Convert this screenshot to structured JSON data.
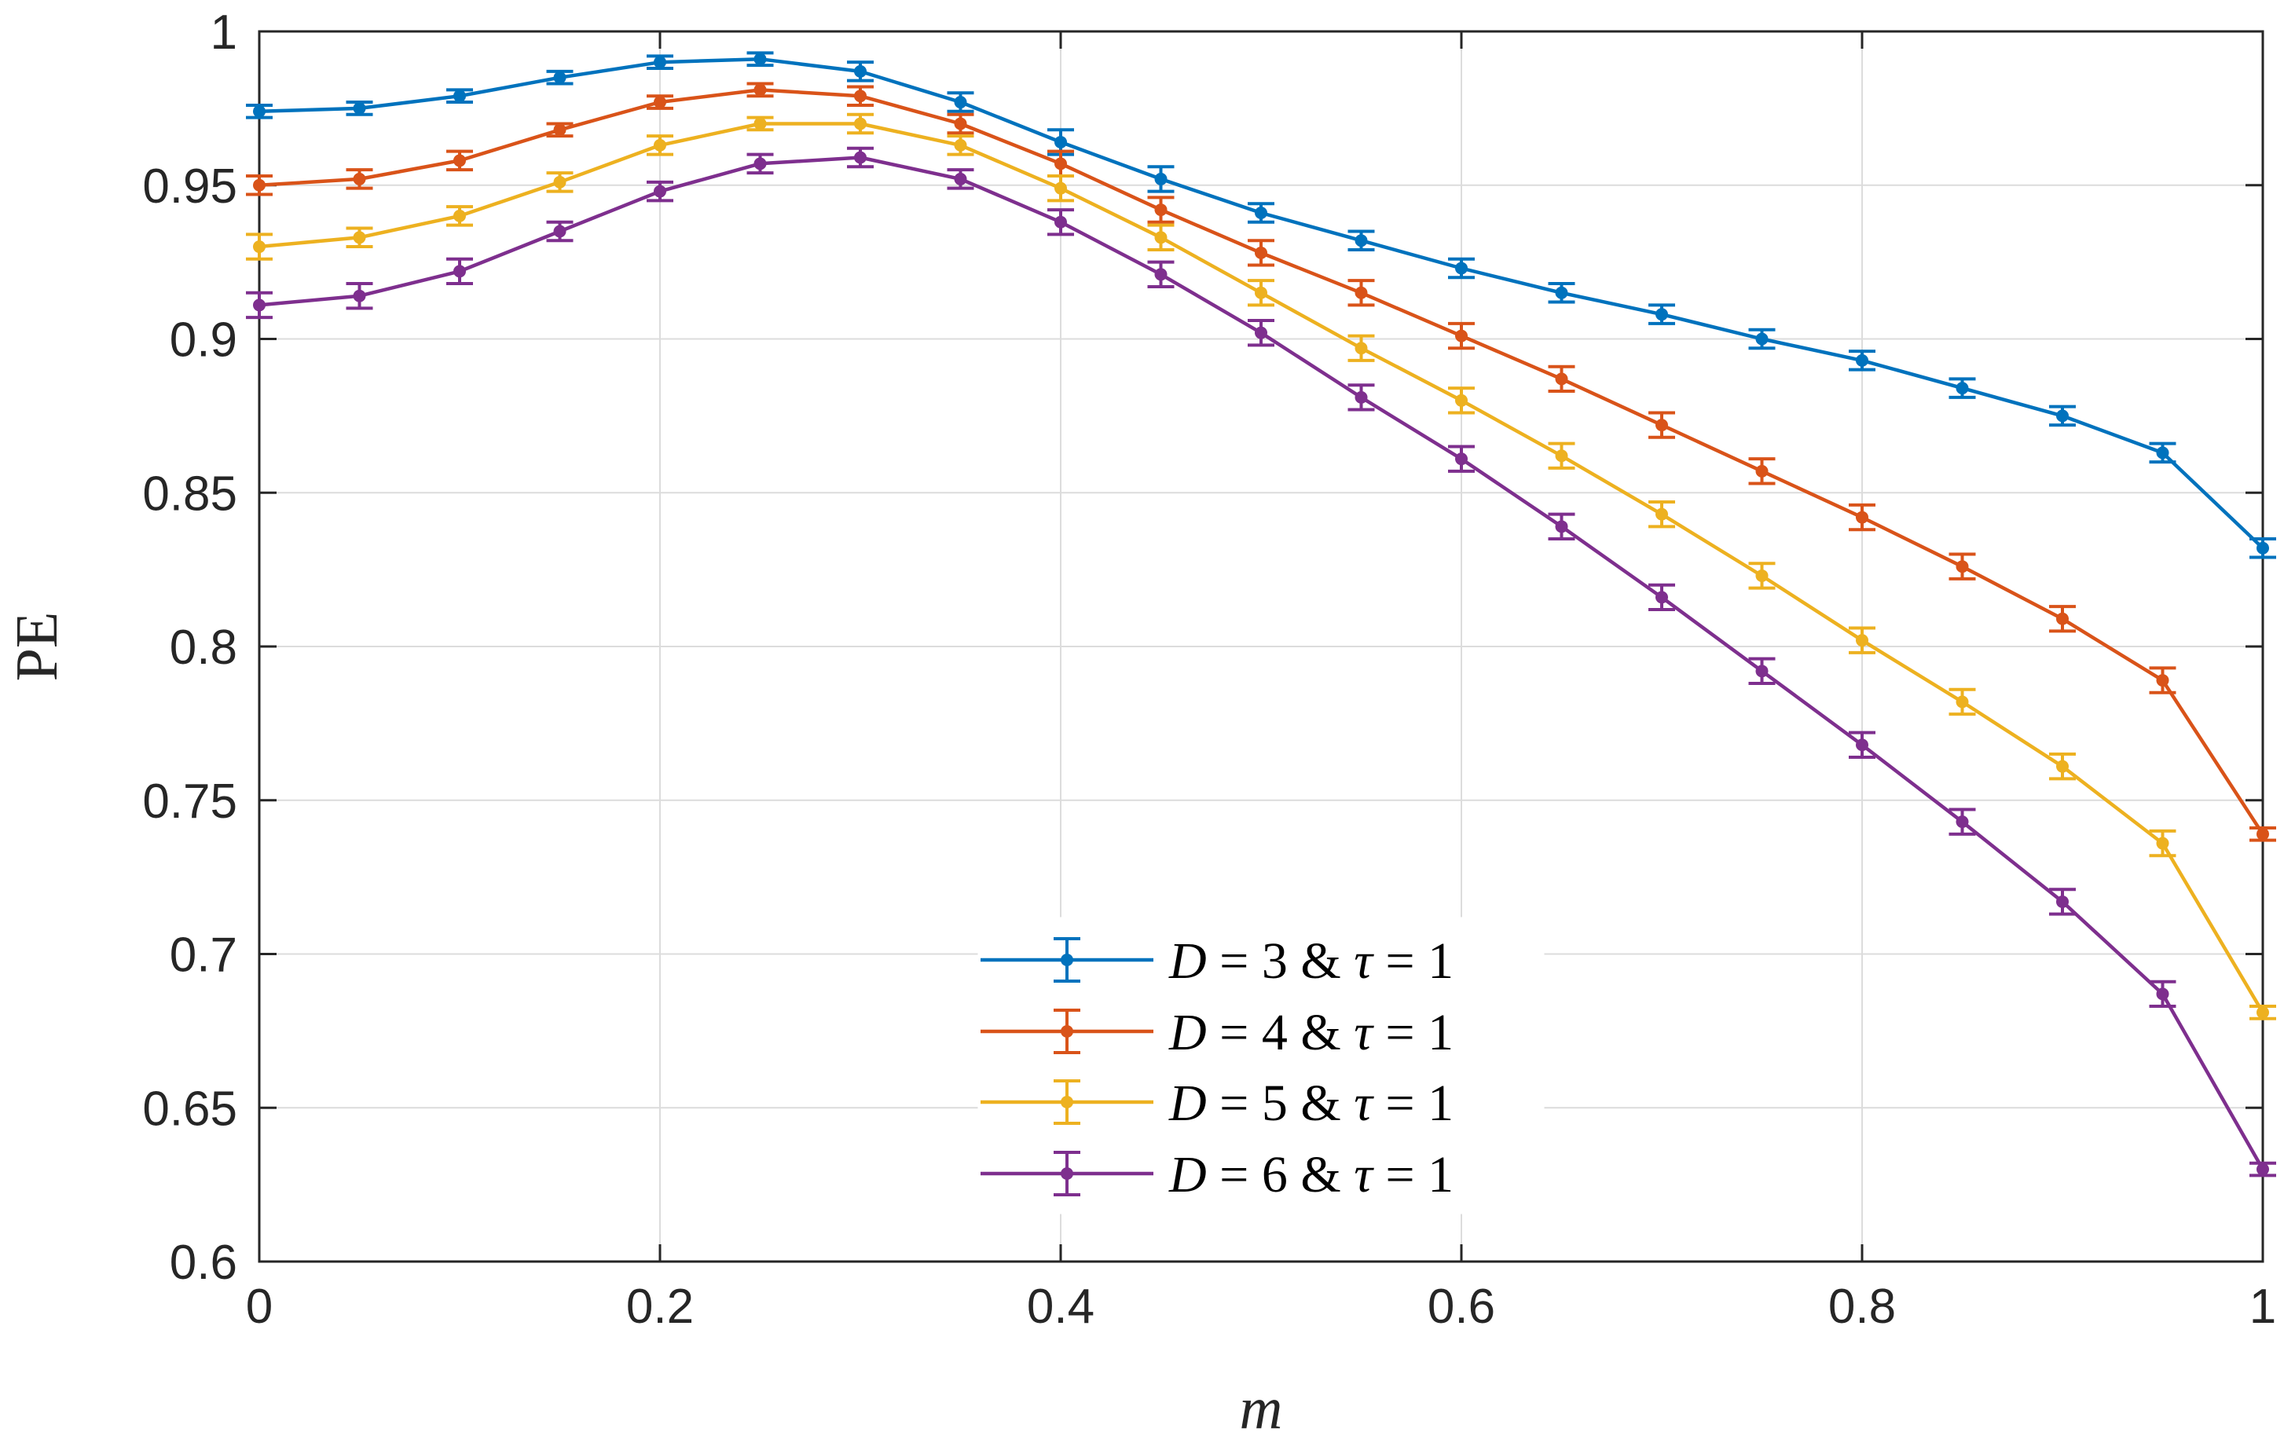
{
  "chart_data": {
    "type": "line",
    "title": "",
    "xlabel": "m",
    "ylabel": "PE",
    "xlim": [
      0,
      1
    ],
    "ylim": [
      0.6,
      1
    ],
    "grid": true,
    "legend_position": "bottom-center",
    "x": [
      0,
      0.05,
      0.1,
      0.15,
      0.2,
      0.25,
      0.3,
      0.35,
      0.4,
      0.45,
      0.5,
      0.55,
      0.6,
      0.65,
      0.7,
      0.75,
      0.8,
      0.85,
      0.9,
      0.95,
      1
    ],
    "x_ticks": [
      {
        "value": 0,
        "label": "0"
      },
      {
        "value": 0.2,
        "label": "0.2"
      },
      {
        "value": 0.4,
        "label": "0.4"
      },
      {
        "value": 0.6,
        "label": "0.6"
      },
      {
        "value": 0.8,
        "label": "0.8"
      },
      {
        "value": 1,
        "label": "1"
      }
    ],
    "y_ticks": [
      {
        "value": 0.6,
        "label": "0.6"
      },
      {
        "value": 0.65,
        "label": "0.65"
      },
      {
        "value": 0.7,
        "label": "0.7"
      },
      {
        "value": 0.75,
        "label": "0.75"
      },
      {
        "value": 0.8,
        "label": "0.8"
      },
      {
        "value": 0.85,
        "label": "0.85"
      },
      {
        "value": 0.9,
        "label": "0.9"
      },
      {
        "value": 0.95,
        "label": "0.95"
      },
      {
        "value": 1,
        "label": "1"
      }
    ],
    "series": [
      {
        "name": "D = 3 & τ = 1",
        "legend": {
          "D": "3",
          "tau": "1"
        },
        "color": "#0072BD",
        "values": [
          0.974,
          0.975,
          0.979,
          0.985,
          0.99,
          0.991,
          0.987,
          0.977,
          0.964,
          0.952,
          0.941,
          0.932,
          0.923,
          0.915,
          0.908,
          0.9,
          0.893,
          0.884,
          0.875,
          0.863,
          0.832
        ],
        "errors": [
          0.002,
          0.002,
          0.002,
          0.002,
          0.002,
          0.002,
          0.003,
          0.003,
          0.004,
          0.004,
          0.003,
          0.003,
          0.003,
          0.003,
          0.003,
          0.003,
          0.003,
          0.003,
          0.003,
          0.003,
          0.003
        ]
      },
      {
        "name": "D = 4 & τ = 1",
        "legend": {
          "D": "4",
          "tau": "1"
        },
        "color": "#D95319",
        "values": [
          0.95,
          0.952,
          0.958,
          0.968,
          0.977,
          0.981,
          0.979,
          0.97,
          0.957,
          0.942,
          0.928,
          0.915,
          0.901,
          0.887,
          0.872,
          0.857,
          0.842,
          0.826,
          0.809,
          0.789,
          0.739
        ],
        "errors": [
          0.003,
          0.003,
          0.003,
          0.002,
          0.002,
          0.002,
          0.003,
          0.003,
          0.004,
          0.004,
          0.004,
          0.004,
          0.004,
          0.004,
          0.004,
          0.004,
          0.004,
          0.004,
          0.004,
          0.004,
          0.002
        ]
      },
      {
        "name": "D = 5 & τ = 1",
        "legend": {
          "D": "5",
          "tau": "1"
        },
        "color": "#EDB120",
        "values": [
          0.93,
          0.933,
          0.94,
          0.951,
          0.963,
          0.97,
          0.97,
          0.963,
          0.949,
          0.933,
          0.915,
          0.897,
          0.88,
          0.862,
          0.843,
          0.823,
          0.802,
          0.782,
          0.761,
          0.736,
          0.681
        ],
        "errors": [
          0.004,
          0.003,
          0.003,
          0.003,
          0.003,
          0.002,
          0.003,
          0.003,
          0.004,
          0.004,
          0.004,
          0.004,
          0.004,
          0.004,
          0.004,
          0.004,
          0.004,
          0.004,
          0.004,
          0.004,
          0.002
        ]
      },
      {
        "name": "D = 6 & τ = 1",
        "legend": {
          "D": "6",
          "tau": "1"
        },
        "color": "#7E2F8E",
        "values": [
          0.911,
          0.914,
          0.922,
          0.935,
          0.948,
          0.957,
          0.959,
          0.952,
          0.938,
          0.921,
          0.902,
          0.881,
          0.861,
          0.839,
          0.816,
          0.792,
          0.768,
          0.743,
          0.717,
          0.687,
          0.63
        ],
        "errors": [
          0.004,
          0.004,
          0.004,
          0.003,
          0.003,
          0.003,
          0.003,
          0.003,
          0.004,
          0.004,
          0.004,
          0.004,
          0.004,
          0.004,
          0.004,
          0.004,
          0.004,
          0.004,
          0.004,
          0.004,
          0.002
        ]
      }
    ]
  }
}
